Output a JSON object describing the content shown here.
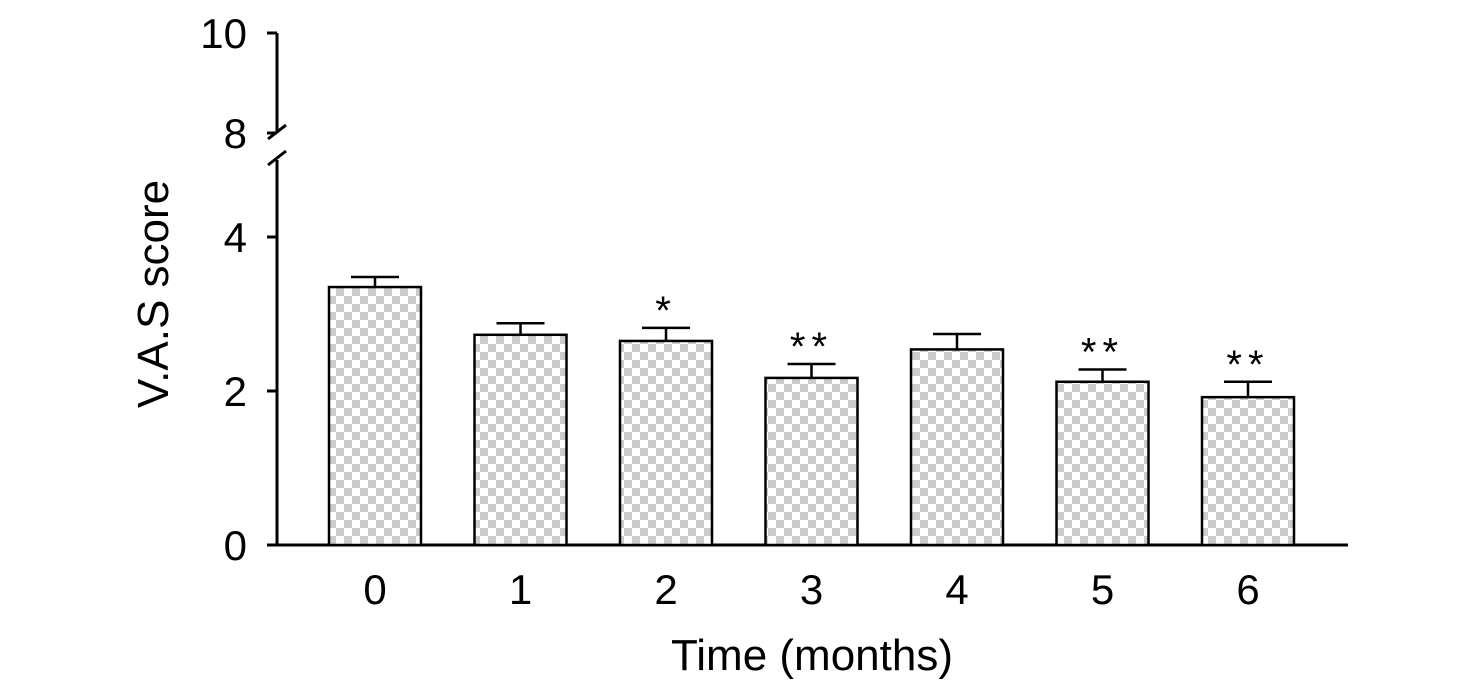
{
  "chart_data": {
    "type": "bar",
    "categories": [
      "0",
      "1",
      "2",
      "3",
      "4",
      "5",
      "6"
    ],
    "values": [
      3.35,
      2.73,
      2.65,
      2.17,
      2.54,
      2.12,
      1.92
    ],
    "error": [
      0.13,
      0.15,
      0.17,
      0.18,
      0.2,
      0.16,
      0.2
    ],
    "annotations": [
      "",
      "",
      "*",
      "**",
      "",
      "**",
      "**"
    ],
    "xlabel": "Time (months)",
    "ylabel": "V.A.S score",
    "ylim": [
      0,
      10
    ],
    "axis_break": [
      5,
      8
    ],
    "yticks": [
      "0",
      "2",
      "4",
      "8",
      "10"
    ],
    "bar_pattern": "checkerboard",
    "bar_colors": [
      "#ffffff",
      "#cccccc"
    ],
    "grid": false,
    "legend": "none"
  }
}
